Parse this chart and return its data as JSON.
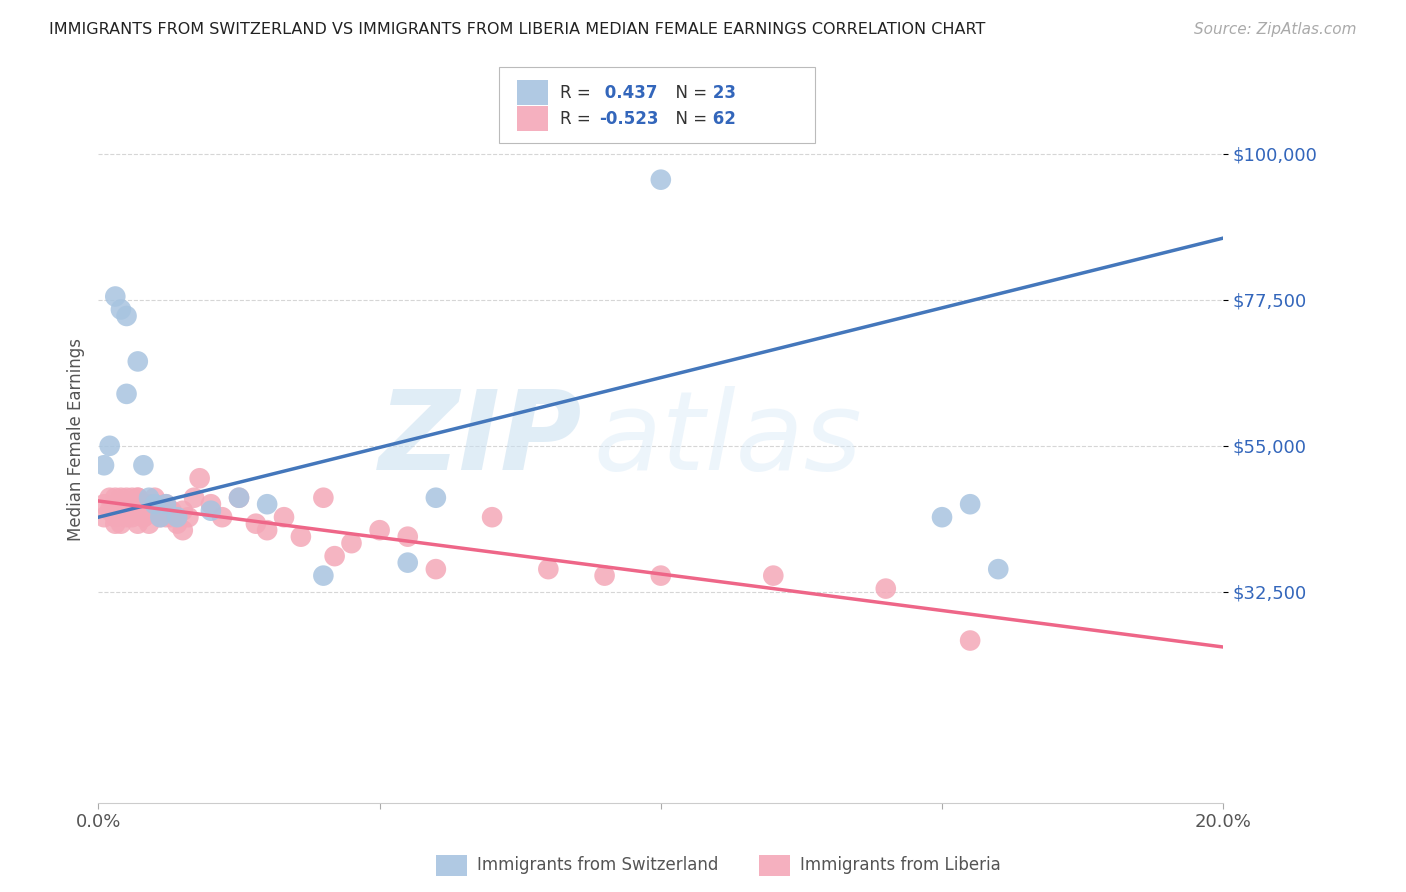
{
  "title": "IMMIGRANTS FROM SWITZERLAND VS IMMIGRANTS FROM LIBERIA MEDIAN FEMALE EARNINGS CORRELATION CHART",
  "source": "Source: ZipAtlas.com",
  "ylabel": "Median Female Earnings",
  "xlim": [
    0.0,
    0.2
  ],
  "ylim": [
    0,
    112000
  ],
  "yticks": [
    32500,
    55000,
    77500,
    100000
  ],
  "ytick_labels": [
    "$32,500",
    "$55,000",
    "$77,500",
    "$100,000"
  ],
  "xticks": [
    0.0,
    0.05,
    0.1,
    0.15,
    0.2
  ],
  "xtick_labels": [
    "0.0%",
    "",
    "",
    "",
    "20.0%"
  ],
  "background_color": "#ffffff",
  "grid_color": "#cccccc",
  "watermark": "ZIPatlas",
  "blue_color": "#a8c4e0",
  "pink_color": "#f4a8b8",
  "blue_line_color": "#4477bb",
  "pink_line_color": "#ee6688",
  "swiss_x": [
    0.001,
    0.002,
    0.003,
    0.004,
    0.005,
    0.005,
    0.007,
    0.008,
    0.009,
    0.01,
    0.011,
    0.012,
    0.014,
    0.02,
    0.025,
    0.03,
    0.04,
    0.055,
    0.06,
    0.1,
    0.15,
    0.155,
    0.16
  ],
  "swiss_y": [
    52000,
    55000,
    78000,
    76000,
    75000,
    63000,
    68000,
    52000,
    47000,
    46000,
    44000,
    46000,
    44000,
    45000,
    47000,
    46000,
    35000,
    37000,
    47000,
    96000,
    44000,
    46000,
    36000
  ],
  "liberia_x": [
    0.001,
    0.001,
    0.002,
    0.002,
    0.003,
    0.003,
    0.003,
    0.004,
    0.004,
    0.004,
    0.004,
    0.005,
    0.005,
    0.005,
    0.005,
    0.006,
    0.006,
    0.006,
    0.006,
    0.007,
    0.007,
    0.007,
    0.007,
    0.008,
    0.008,
    0.008,
    0.009,
    0.009,
    0.01,
    0.01,
    0.011,
    0.011,
    0.012,
    0.012,
    0.013,
    0.013,
    0.014,
    0.015,
    0.015,
    0.016,
    0.017,
    0.018,
    0.02,
    0.022,
    0.025,
    0.028,
    0.03,
    0.033,
    0.036,
    0.04,
    0.042,
    0.045,
    0.05,
    0.055,
    0.06,
    0.07,
    0.08,
    0.09,
    0.1,
    0.12,
    0.14,
    0.155
  ],
  "liberia_y": [
    46000,
    44000,
    47000,
    45000,
    47000,
    44000,
    43000,
    46000,
    47000,
    45000,
    43000,
    45000,
    47000,
    46000,
    44000,
    46000,
    47000,
    45000,
    44000,
    47000,
    45000,
    43000,
    47000,
    44000,
    46000,
    44000,
    46000,
    43000,
    46000,
    47000,
    45000,
    44000,
    44000,
    46000,
    45000,
    44000,
    43000,
    45000,
    42000,
    44000,
    47000,
    50000,
    46000,
    44000,
    47000,
    43000,
    42000,
    44000,
    41000,
    47000,
    38000,
    40000,
    42000,
    41000,
    36000,
    44000,
    36000,
    35000,
    35000,
    35000,
    33000,
    25000
  ],
  "blue_line_x0": 0.0,
  "blue_line_y0": 44000,
  "blue_line_x1": 0.2,
  "blue_line_y1": 87000,
  "pink_line_x0": 0.0,
  "pink_line_y0": 46500,
  "pink_line_x1": 0.2,
  "pink_line_y1": 24000
}
